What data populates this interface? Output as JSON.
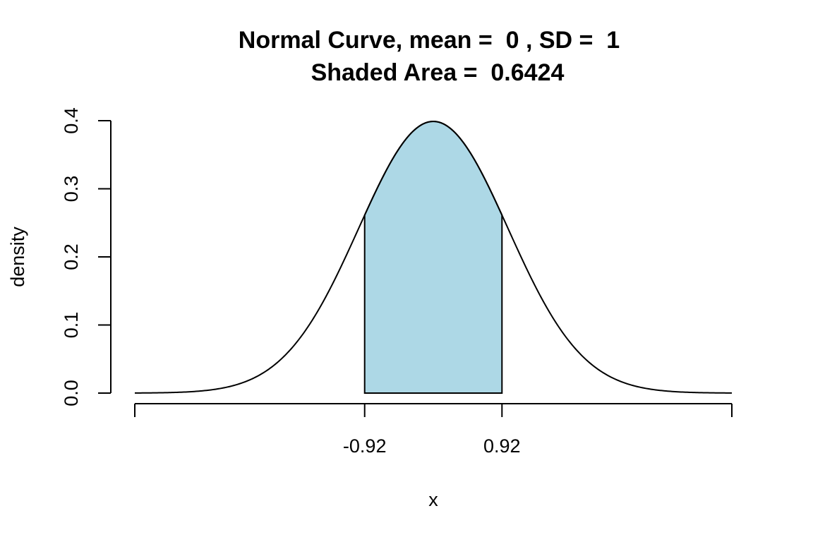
{
  "chart_data": {
    "type": "area",
    "title_line1": "Normal Curve, mean =  0 , SD =  1",
    "title_line2": "Shaded Area =  0.6424",
    "mean": 0,
    "sd": 1,
    "shaded_area": 0.6424,
    "shade_from": -0.92,
    "shade_to": 0.92,
    "xlim": [
      -4,
      4
    ],
    "ylim": [
      0,
      0.4
    ],
    "xlabel": "x",
    "ylabel": "density",
    "x_ticks": [
      {
        "value": -4,
        "label": ""
      },
      {
        "value": -0.92,
        "label": "-0.92"
      },
      {
        "value": 0.92,
        "label": "0.92"
      },
      {
        "value": 4,
        "label": ""
      }
    ],
    "y_ticks": [
      {
        "value": 0.0,
        "label": "0.0"
      },
      {
        "value": 0.1,
        "label": "0.1"
      },
      {
        "value": 0.2,
        "label": "0.2"
      },
      {
        "value": 0.3,
        "label": "0.3"
      },
      {
        "value": 0.4,
        "label": "0.4"
      }
    ],
    "shade_color": "#add8e6",
    "line_color": "#000000",
    "grid": false,
    "legend": "none"
  }
}
